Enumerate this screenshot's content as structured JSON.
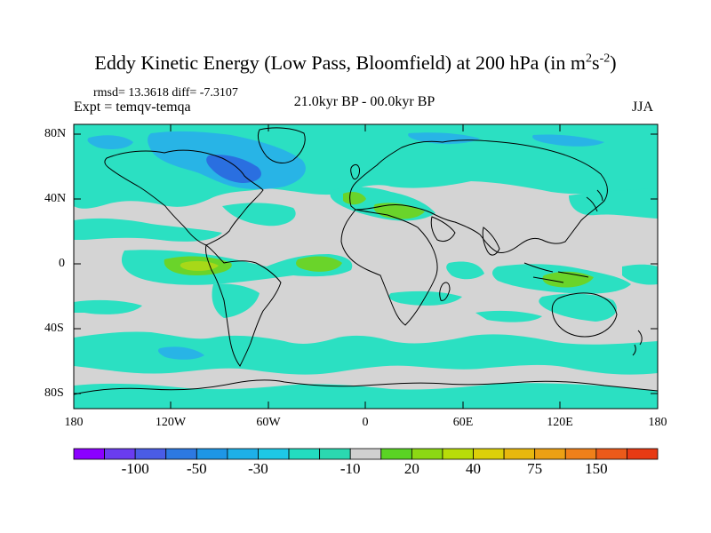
{
  "title": {
    "prefix": "Eddy Kinetic Energy (Low Pass, Bloomfield) at 200 hPa (in m",
    "sup1": "2",
    "mid": "s",
    "sup2": "-2",
    "suffix": ")"
  },
  "stats": "rmsd= 13.3618 diff= -7.3107",
  "expt": "Expt = temqv-temqa",
  "period": "21.0kyr BP - 00.0kyr BP",
  "season": "JJA",
  "lat_labels": [
    "80N",
    "40N",
    "0",
    "40S",
    "80S"
  ],
  "lon_labels": [
    "180",
    "120W",
    "60W",
    "0",
    "60E",
    "120E",
    "180"
  ],
  "colorbar": {
    "colors": [
      "#8b00ff",
      "#6a3cf0",
      "#4a5ce6",
      "#2d79e2",
      "#1e96e6",
      "#1eb0e8",
      "#1ec8e6",
      "#23dcc0",
      "#2bd8b0",
      "#d0d0d0",
      "#5ad424",
      "#8cd814",
      "#b8dc0a",
      "#dcd00a",
      "#e8b80e",
      "#eca014",
      "#f0801a",
      "#ec5a1a",
      "#e83a14"
    ],
    "labels": [
      "-100",
      "-50",
      "-30",
      "-10",
      "20",
      "40",
      "75",
      "150"
    ],
    "colors_map": {
      "ocean_base": "#d4d4d4",
      "cyan": "#2be0c2",
      "blue": "#28b4e6",
      "deep_blue": "#2a6fe0",
      "green": "#6ad42a",
      "yellowgreen": "#a8d818"
    }
  }
}
